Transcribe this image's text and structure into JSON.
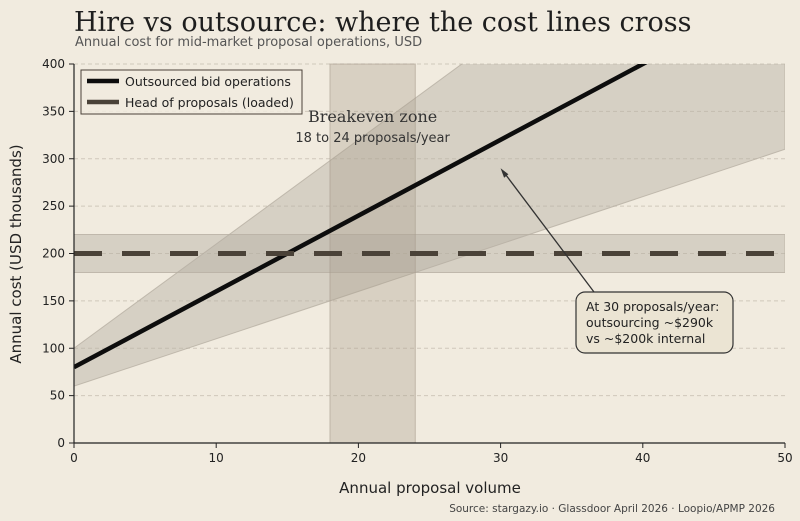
{
  "chart_data": {
    "type": "line",
    "title": "Hire vs outsource: where the cost lines cross",
    "subtitle": "Annual cost for mid-market proposal operations, USD",
    "xlabel": "Annual proposal volume",
    "ylabel": "Annual cost (USD thousands)",
    "xlim": [
      0,
      50
    ],
    "ylim": [
      0,
      400
    ],
    "xticks": [
      0,
      10,
      20,
      30,
      40,
      50
    ],
    "yticks": [
      0,
      50,
      100,
      150,
      200,
      250,
      300,
      350,
      400
    ],
    "grid": "horizontal dashed",
    "legend_position": "top-left",
    "series": [
      {
        "name": "Outsourced bid operations",
        "x": [
          0,
          50
        ],
        "y": [
          80,
          480
        ],
        "band_lower": [
          60,
          310
        ],
        "band_upper": [
          100,
          650
        ],
        "color": "#0d0d0d",
        "style": "solid"
      },
      {
        "name": "Head of proposals (loaded)",
        "x": [
          0,
          50
        ],
        "y": [
          200,
          200
        ],
        "band_lower": [
          180,
          180
        ],
        "band_upper": [
          220,
          220
        ],
        "color": "#4a4238",
        "style": "dashed"
      }
    ],
    "annotations": {
      "zone": {
        "x_start": 18,
        "x_end": 24,
        "title": "Breakeven zone",
        "subtitle": "18 to 24 proposals/year"
      },
      "callout": {
        "point_x": 30,
        "point_y": 290,
        "lines": [
          "At 30 proposals/year:",
          "outsourcing ~$290k",
          "vs ~$200k internal"
        ]
      }
    },
    "source": "Source: stargazy.io  ·  Glassdoor April 2026  ·  Loopio/APMP 2026"
  },
  "colors": {
    "background": "#f1ebdf",
    "band": "#b6afa3",
    "zone": "#a89d8d",
    "grid": "#cfc8bb",
    "callout_fill": "#ebe4d3"
  }
}
